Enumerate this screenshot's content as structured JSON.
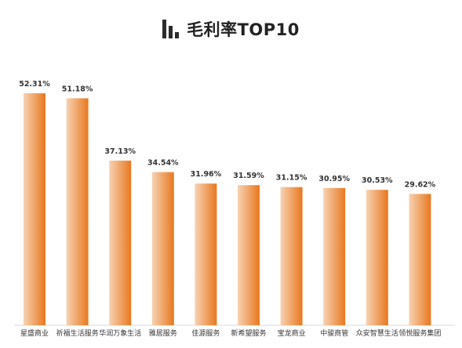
{
  "chart_data": {
    "type": "bar",
    "title": "毛利率TOP10",
    "categories": [
      "星盛商业",
      "祈福生活服务",
      "华润万象生活",
      "雅居服务",
      "佳源服务",
      "新希望服务",
      "宝龙商业",
      "中骏商管",
      "众安智慧生活",
      "领悦服务集团"
    ],
    "values": [
      52.31,
      51.18,
      37.13,
      34.54,
      31.96,
      31.59,
      31.15,
      30.95,
      30.53,
      29.62
    ],
    "value_labels": [
      "52.31%",
      "51.18%",
      "37.13%",
      "34.54%",
      "31.96%",
      "31.59%",
      "31.15%",
      "30.95%",
      "30.53%",
      "29.62%"
    ],
    "ylim": [
      0,
      60
    ],
    "grid": false,
    "legend": "none",
    "bar_color_start": "#f7d2b3",
    "bar_color_end": "#e8781f"
  }
}
